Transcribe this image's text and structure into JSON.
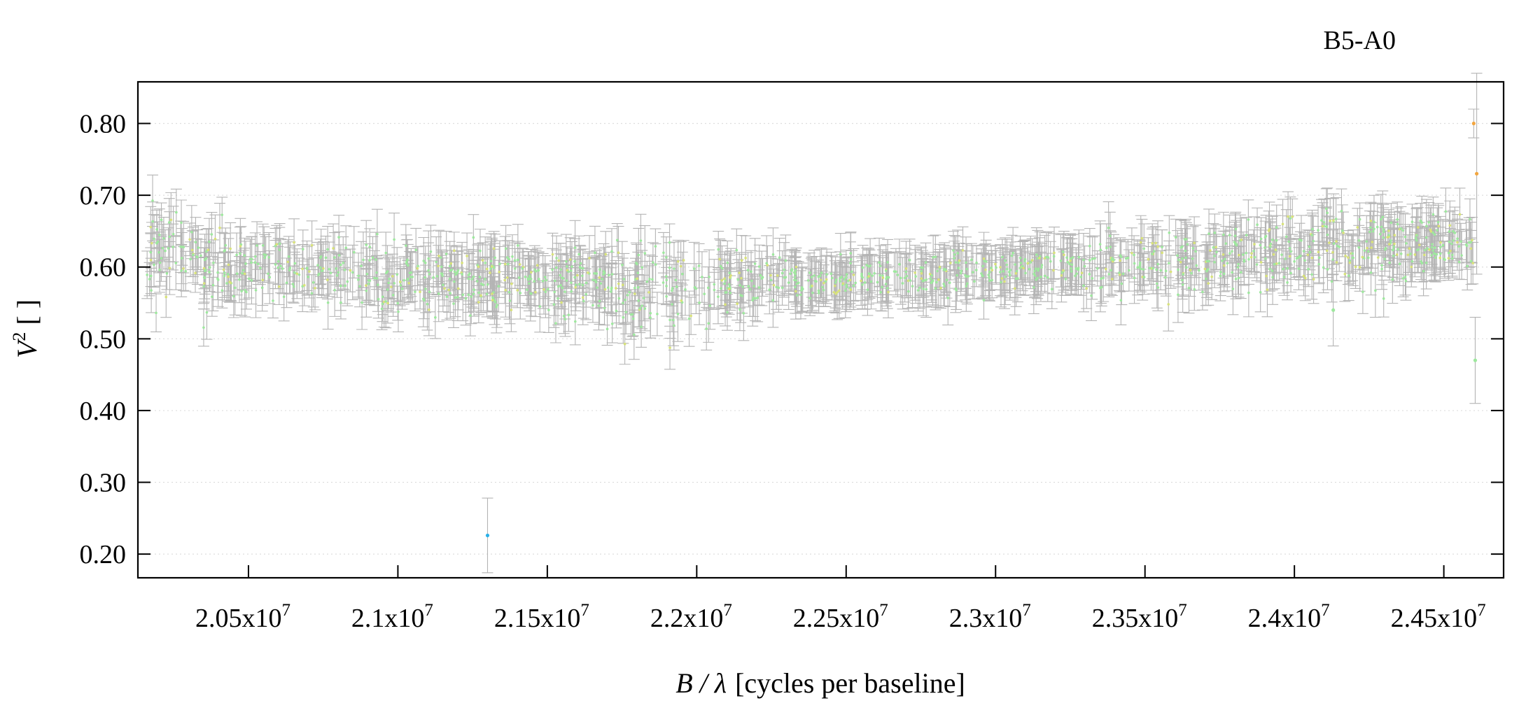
{
  "chart_data": {
    "type": "scatter",
    "title": "B5-A0",
    "xlabel": "[cycles per baseline]",
    "xlabel_symbol": "B / λ",
    "ylabel": "[ ]",
    "ylabel_symbol": "V",
    "ylabel_exponent": "2",
    "xlim": [
      20130000,
      24700000
    ],
    "ylim": [
      0.167,
      0.858
    ],
    "grid": true,
    "legend": "none",
    "x_ticks": [
      {
        "value": 20500000,
        "mantissa": "2.05x10",
        "exp": "7"
      },
      {
        "value": 21000000,
        "mantissa": "2.1x10",
        "exp": "7"
      },
      {
        "value": 21500000,
        "mantissa": "2.15x10",
        "exp": "7"
      },
      {
        "value": 22000000,
        "mantissa": "2.2x10",
        "exp": "7"
      },
      {
        "value": 22500000,
        "mantissa": "2.25x10",
        "exp": "7"
      },
      {
        "value": 23000000,
        "mantissa": "2.3x10",
        "exp": "7"
      },
      {
        "value": 23500000,
        "mantissa": "2.35x10",
        "exp": "7"
      },
      {
        "value": 24000000,
        "mantissa": "2.4x10",
        "exp": "7"
      },
      {
        "value": 24500000,
        "mantissa": "2.45x10",
        "exp": "7"
      }
    ],
    "y_ticks": [
      {
        "value": 0.2,
        "label": "0.20"
      },
      {
        "value": 0.3,
        "label": "0.30"
      },
      {
        "value": 0.4,
        "label": "0.40"
      },
      {
        "value": 0.5,
        "label": "0.50"
      },
      {
        "value": 0.6,
        "label": "0.60"
      },
      {
        "value": 0.7,
        "label": "0.70"
      },
      {
        "value": 0.8,
        "label": "0.80"
      }
    ],
    "trend": {
      "x": [
        20150000,
        20300000,
        20500000,
        21000000,
        21500000,
        22000000,
        22500000,
        23000000,
        23500000,
        24000000,
        24300000,
        24500000,
        24600000
      ],
      "y": [
        0.625,
        0.612,
        0.6,
        0.585,
        0.578,
        0.573,
        0.585,
        0.595,
        0.605,
        0.617,
        0.628,
        0.633,
        0.63
      ]
    },
    "scatter": {
      "x_start": 20160000,
      "x_end": 24600000,
      "count": 1400,
      "base_noise": 0.022,
      "errorbar_sigma": 0.03
    },
    "series": [
      {
        "color": "#2ab0e8",
        "points": [
          {
            "x": 21300000,
            "y": 0.226,
            "err": 0.052
          }
        ]
      },
      {
        "color": "#f2a640",
        "points": [
          {
            "x": 24600000,
            "y": 0.8,
            "err": 0.02
          },
          {
            "x": 24610000,
            "y": 0.73,
            "err": 0.14
          }
        ]
      },
      {
        "color": "#9ee89e",
        "points": [
          {
            "x": 24605000,
            "y": 0.47,
            "err": 0.06
          },
          {
            "x": 24130000,
            "y": 0.54,
            "err": 0.05
          }
        ]
      }
    ],
    "colors": {
      "errorbar": "#b4b4b4",
      "marker_main": "#9ee89e",
      "marker_alt": "#d8e27a",
      "grid": "#dddddd",
      "axis": "#000000"
    }
  }
}
